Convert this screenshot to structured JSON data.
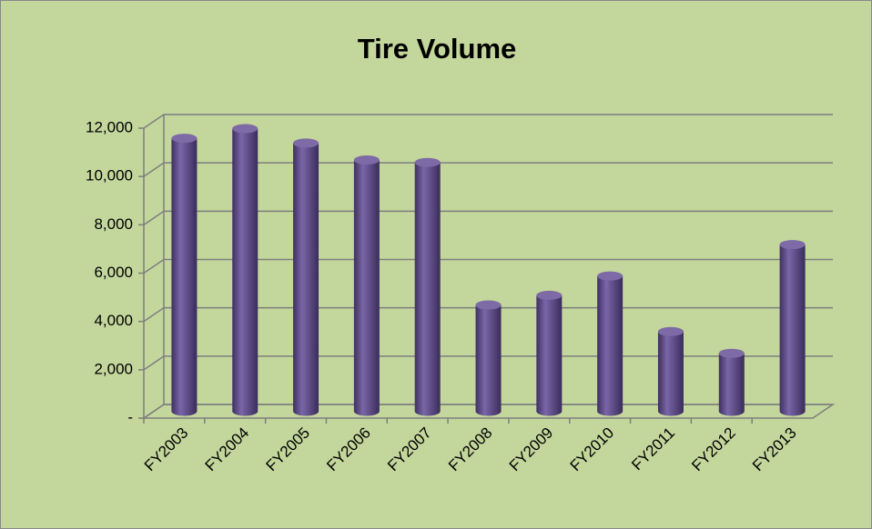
{
  "chart_data": {
    "type": "bar",
    "title": "Tire Volume",
    "categories": [
      "FY2003",
      "FY2004",
      "FY2005",
      "FY2006",
      "FY2007",
      "FY2008",
      "FY2009",
      "FY2010",
      "FY2011",
      "FY2012",
      "FY2013"
    ],
    "values": [
      11300,
      11700,
      11100,
      10400,
      10300,
      4400,
      4800,
      5600,
      3300,
      2400,
      6900
    ],
    "color": "#5f4a8b",
    "ylim": [
      0,
      12000
    ],
    "yticks": [
      {
        "value": 0,
        "label": "-"
      },
      {
        "value": 2000,
        "label": "2,000"
      },
      {
        "value": 4000,
        "label": "4,000"
      },
      {
        "value": 6000,
        "label": "6,000"
      },
      {
        "value": 8000,
        "label": "8,000"
      },
      {
        "value": 10000,
        "label": "10,000"
      },
      {
        "value": 12000,
        "label": "12,000"
      }
    ],
    "grid": true
  }
}
